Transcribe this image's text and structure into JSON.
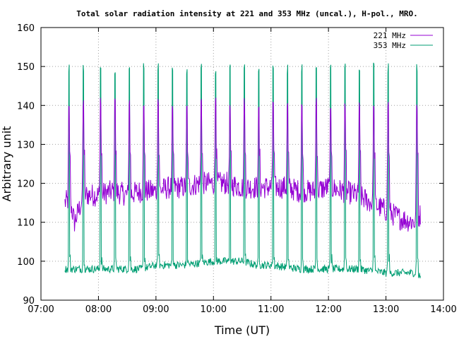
{
  "chart_data": {
    "type": "line",
    "title": "Total solar radiation intensity at 221 and 353 MHz (uncal.), H-pol., MRO.",
    "xlabel": "Time (UT)",
    "ylabel": "Arbitrary unit",
    "xlim": [
      "07:00",
      "14:00"
    ],
    "ylim": [
      90,
      160
    ],
    "x_ticks": [
      "07:00",
      "08:00",
      "09:00",
      "10:00",
      "11:00",
      "12:00",
      "13:00",
      "14:00"
    ],
    "y_ticks": [
      90,
      100,
      110,
      120,
      130,
      140,
      150,
      160
    ],
    "grid": true,
    "legend_position": "top-right",
    "series": [
      {
        "name": "221 MHz",
        "color": "#9400d3",
        "start": "07:25",
        "end": "13:36",
        "baseline_points": [
          [
            "07:25",
            115
          ],
          [
            "07:30",
            116
          ],
          [
            "07:35",
            110
          ],
          [
            "07:45",
            117
          ],
          [
            "08:00",
            117
          ],
          [
            "08:15",
            118
          ],
          [
            "08:30",
            117
          ],
          [
            "08:45",
            118
          ],
          [
            "09:00",
            118
          ],
          [
            "09:15",
            119
          ],
          [
            "09:30",
            119
          ],
          [
            "09:45",
            120
          ],
          [
            "10:00",
            120
          ],
          [
            "10:15",
            120
          ],
          [
            "10:30",
            119
          ],
          [
            "10:45",
            119
          ],
          [
            "11:00",
            119
          ],
          [
            "11:15",
            119
          ],
          [
            "11:30",
            118
          ],
          [
            "11:45",
            118
          ],
          [
            "12:00",
            119
          ],
          [
            "12:15",
            118
          ],
          [
            "12:30",
            117
          ],
          [
            "12:45",
            115
          ],
          [
            "13:00",
            113
          ],
          [
            "13:15",
            111
          ],
          [
            "13:30",
            110
          ],
          [
            "13:36",
            112
          ]
        ],
        "calibration_peak": 142
      },
      {
        "name": "353 MHz",
        "color": "#009e73",
        "start": "07:25",
        "end": "13:36",
        "baseline_points": [
          [
            "07:25",
            98
          ],
          [
            "07:45",
            98
          ],
          [
            "08:00",
            98
          ],
          [
            "08:30",
            98
          ],
          [
            "08:45",
            98
          ],
          [
            "09:00",
            99
          ],
          [
            "09:15",
            99
          ],
          [
            "09:30",
            99
          ],
          [
            "10:00",
            100
          ],
          [
            "10:30",
            100
          ],
          [
            "10:45",
            99
          ],
          [
            "11:00",
            99
          ],
          [
            "11:30",
            98
          ],
          [
            "12:00",
            98
          ],
          [
            "12:30",
            98
          ],
          [
            "13:00",
            97
          ],
          [
            "13:30",
            97
          ],
          [
            "13:36",
            96
          ]
        ],
        "calibration_peak": 151
      }
    ],
    "calibration_times": [
      "07:29",
      "07:44",
      "08:02",
      "08:17",
      "08:32",
      "08:47",
      "09:02",
      "09:17",
      "09:32",
      "09:47",
      "10:02",
      "10:17",
      "10:32",
      "10:47",
      "11:02",
      "11:17",
      "11:32",
      "11:47",
      "12:02",
      "12:17",
      "12:32",
      "12:47",
      "13:02",
      "13:32"
    ]
  }
}
